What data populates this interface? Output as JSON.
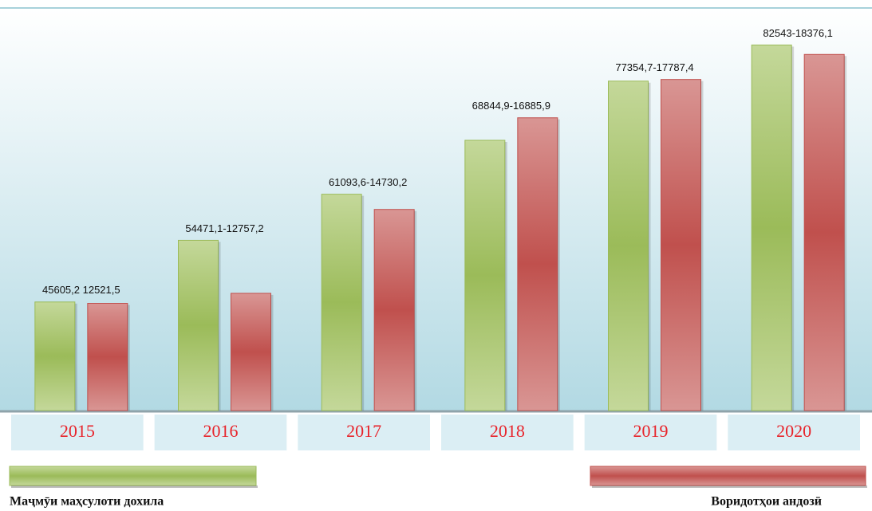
{
  "chart_data": {
    "type": "bar",
    "categories": [
      "2015",
      "2016",
      "2017",
      "2018",
      "2019",
      "2020"
    ],
    "series": [
      {
        "name": "Маҷмӯи маҳсулоти дохила",
        "color": "#9bbb59",
        "values": [
          45605.2,
          54471.1,
          61093.6,
          68844.9,
          77354.7,
          82543
        ]
      },
      {
        "name": "Воридотҳои андозӣ",
        "color": "#c0504d",
        "axis": "y2",
        "values": [
          12521.5,
          12757.2,
          14730.2,
          16885.9,
          17787.4,
          18376.1
        ]
      }
    ],
    "value_labels": [
      "45605,2 12521,5",
      "54471,1-12757,2",
      "61093,6-14730,2",
      "68844,9-16885,9",
      "77354,7-17787,4",
      "82543-18376,1"
    ],
    "ylim": [
      30000,
      85000
    ],
    "y2lim": [
      10000,
      19000
    ]
  }
}
